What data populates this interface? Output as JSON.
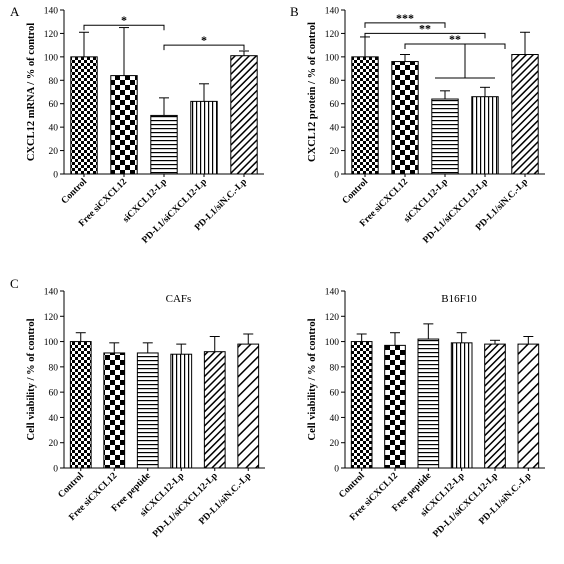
{
  "chart_data": [
    {
      "panel": "A",
      "type": "bar",
      "title": "",
      "ylabel": "CXCL12 mRNA / % of control",
      "ylim": [
        0,
        140
      ],
      "yticks": [
        0,
        20,
        40,
        60,
        80,
        100,
        120,
        140
      ],
      "categories": [
        "Control",
        "Free siCXCL12",
        "siCXCL12-Lp",
        "PD-L1/siCXCL12-Lp",
        "PD-L1/siN.C.-Lp"
      ],
      "values": [
        100,
        84,
        50,
        62,
        101
      ],
      "errors": [
        21,
        41,
        15,
        15,
        4
      ],
      "patterns": [
        "checker",
        "bigchecker",
        "hlines",
        "vlines",
        "diag"
      ],
      "significance": [
        {
          "from": 0,
          "to": 2,
          "y": 127,
          "label": "*"
        },
        {
          "from": 2,
          "to": 4,
          "y": 110,
          "label": "*"
        }
      ]
    },
    {
      "panel": "B",
      "type": "bar",
      "title": "",
      "ylabel": "CXCL12 protein / % of control",
      "ylim": [
        0,
        140
      ],
      "yticks": [
        0,
        20,
        40,
        60,
        80,
        100,
        120,
        140
      ],
      "categories": [
        "Control",
        "Free siCXCL12",
        "siCXCL12-Lp",
        "PD-L1/siCXCL12-Lp",
        "PD-L1/siN.C.-Lp"
      ],
      "values": [
        100,
        96,
        64,
        66,
        102
      ],
      "errors": [
        17,
        6,
        7,
        8,
        19
      ],
      "patterns": [
        "checker",
        "bigchecker",
        "hlines",
        "vlines",
        "diag"
      ],
      "significance": [
        {
          "from": 0,
          "to": 2,
          "y": 129,
          "label": "***"
        },
        {
          "from": 0,
          "to": 3,
          "y": 120,
          "label": "**"
        },
        {
          "from": 1,
          "to": 3.5,
          "y": 111,
          "label": "**"
        }
      ],
      "group_bracket": {
        "from": 2,
        "to": 3,
        "y": 82
      }
    },
    {
      "panel": "C",
      "type": "bar",
      "title": "CAFs",
      "ylabel": "Cell viability / % of control",
      "ylim": [
        0,
        140
      ],
      "yticks": [
        0,
        20,
        40,
        60,
        80,
        100,
        120,
        140
      ],
      "categories": [
        "Control",
        "Free siCXCL12",
        "Free peptide",
        "siCXCL12-Lp",
        "PD-L1/siCXCL12-Lp",
        "PD-L1/siN.C.-Lp"
      ],
      "values": [
        100,
        91,
        91,
        90,
        92,
        98
      ],
      "errors": [
        7,
        8,
        8,
        8,
        12,
        8
      ],
      "patterns": [
        "checker",
        "bigchecker",
        "hlines",
        "vlines",
        "diag",
        "diagwide"
      ]
    },
    {
      "panel": "",
      "type": "bar",
      "title": "B16F10",
      "ylabel": "Cell viability / % of control",
      "ylim": [
        0,
        140
      ],
      "yticks": [
        0,
        20,
        40,
        60,
        80,
        100,
        120,
        140
      ],
      "categories": [
        "Control",
        "Free siCXCL12",
        "Free peptide",
        "siCXCL12-Lp",
        "PD-L1/siCXCL12-Lp",
        "PD-L1/siN.C.-Lp"
      ],
      "values": [
        100,
        97,
        102,
        99,
        98,
        98
      ],
      "errors": [
        6,
        10,
        12,
        8,
        3,
        6
      ],
      "patterns": [
        "checker",
        "bigchecker",
        "hlines",
        "vlines",
        "diag",
        "diagwide"
      ]
    }
  ]
}
